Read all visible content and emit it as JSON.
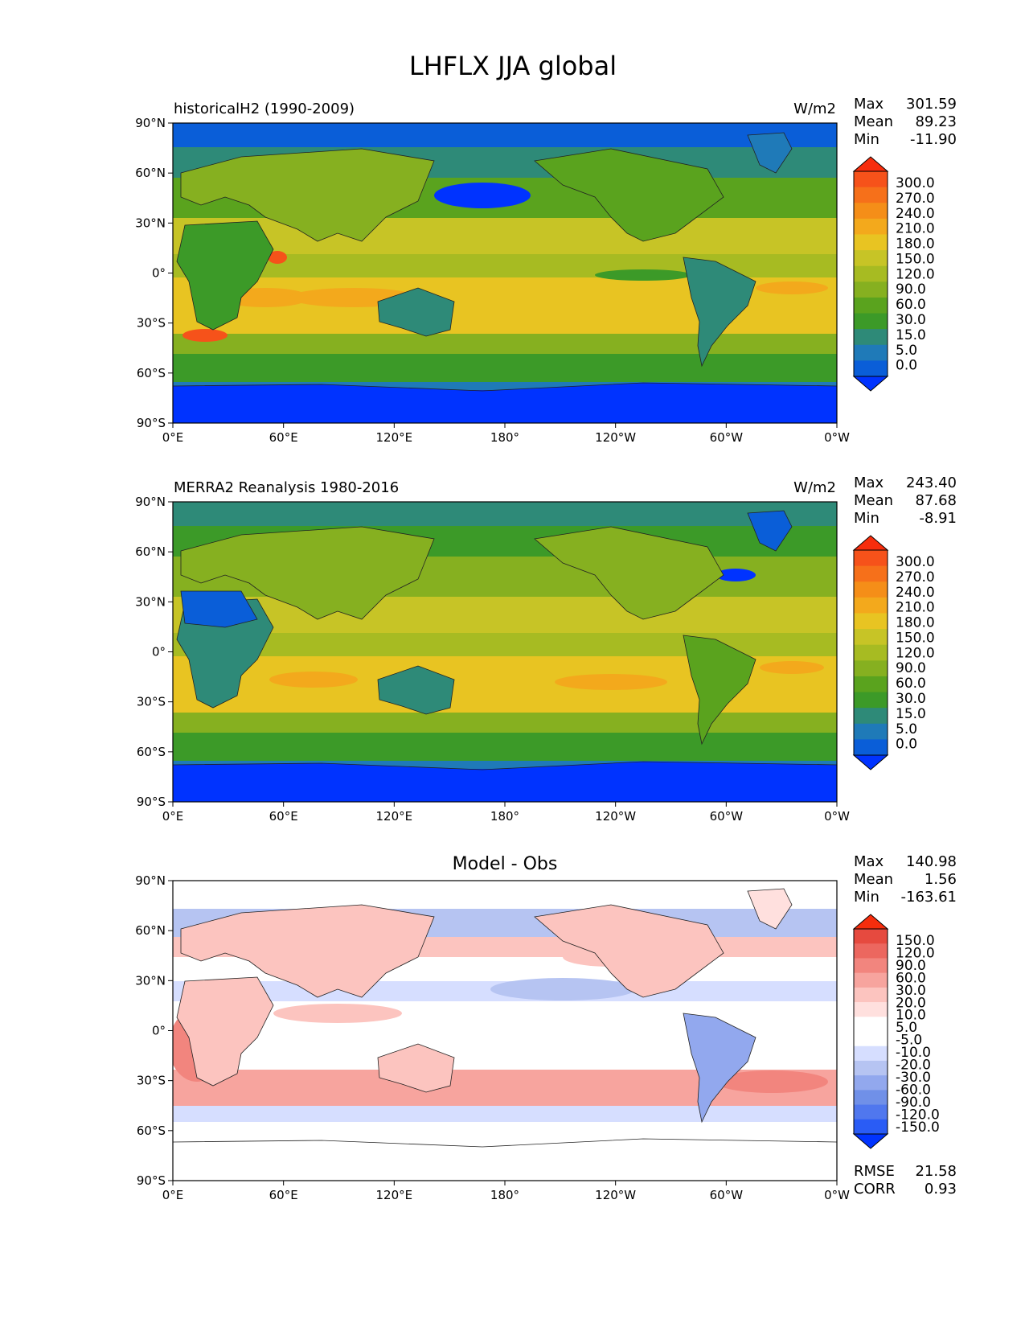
{
  "title": "LHFLX JJA global",
  "axes": {
    "lat_ticks": [
      "90°N",
      "60°N",
      "30°N",
      "0°",
      "30°S",
      "60°S",
      "90°S"
    ],
    "lon_ticks": [
      "0°E",
      "60°E",
      "120°E",
      "180°",
      "120°W",
      "60°W",
      "0°W"
    ]
  },
  "colors": {
    "test_levels": [
      "#0033ff",
      "#0a5ed8",
      "#1f7ab8",
      "#2e8a78",
      "#3c9a28",
      "#5aa31e",
      "#86b020",
      "#a7bb22",
      "#c7c426",
      "#e8c422",
      "#f3a91c",
      "#f58e18",
      "#f6701a",
      "#f6521a",
      "#f72d0d"
    ],
    "diff_levels": [
      "#0033ff",
      "#2a5cf5",
      "#5077ee",
      "#7090e8",
      "#92a8ee",
      "#b6c4f2",
      "#d6deff",
      "#ffffff",
      "#ffffff",
      "#ffe0de",
      "#fcc4bf",
      "#f7a49e",
      "#f2857e",
      "#ec675f",
      "#e64a3f",
      "#f72d0d"
    ]
  },
  "panels": [
    {
      "id": "test",
      "label": "historicalH2 (1990-2009)",
      "units": "W/m2",
      "stats": {
        "max_label": "Max",
        "max": "301.59",
        "mean_label": "Mean",
        "mean": "89.23",
        "min_label": "Min",
        "min": "-11.90"
      },
      "colorbar": {
        "ticks": [
          "300.0",
          "270.0",
          "240.0",
          "210.0",
          "180.0",
          "150.0",
          "120.0",
          "90.0",
          "60.0",
          "30.0",
          "15.0",
          "5.0",
          "0.0"
        ]
      }
    },
    {
      "id": "ref",
      "label": "MERRA2 Reanalysis 1980-2016",
      "units": "W/m2",
      "stats": {
        "max_label": "Max",
        "max": "243.40",
        "mean_label": "Mean",
        "mean": "87.68",
        "min_label": "Min",
        "min": "-8.91"
      },
      "colorbar": {
        "ticks": [
          "300.0",
          "270.0",
          "240.0",
          "210.0",
          "180.0",
          "150.0",
          "120.0",
          "90.0",
          "60.0",
          "30.0",
          "15.0",
          "5.0",
          "0.0"
        ]
      }
    },
    {
      "id": "diff",
      "center_title": "Model - Obs",
      "stats": {
        "max_label": "Max",
        "max": "140.98",
        "mean_label": "Mean",
        "mean": "1.56",
        "min_label": "Min",
        "min": "-163.61"
      },
      "colorbar": {
        "ticks": [
          "150.0",
          "120.0",
          "90.0",
          "60.0",
          "30.0",
          "20.0",
          "10.0",
          "5.0",
          "-5.0",
          "-10.0",
          "-20.0",
          "-30.0",
          "-60.0",
          "-90.0",
          "-120.0",
          "-150.0"
        ]
      },
      "metrics": {
        "rmse_label": "RMSE",
        "rmse": "21.58",
        "corr_label": "CORR",
        "corr": "0.93"
      }
    }
  ]
}
